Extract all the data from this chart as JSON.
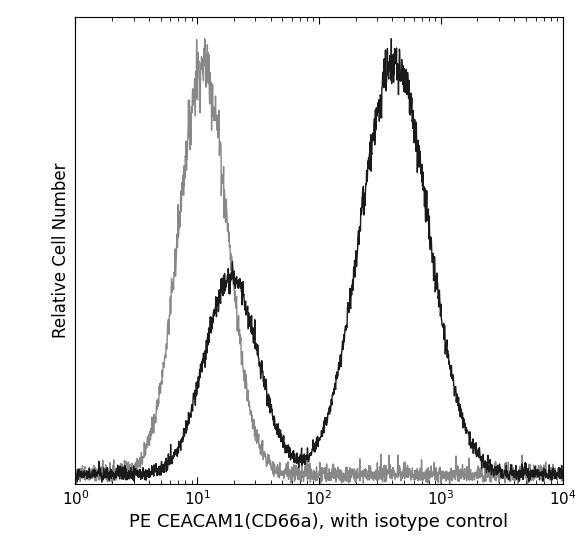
{
  "xlabel": "PE CEACAM1(CD66a), with isotype control",
  "ylabel": "Relative Cell Number",
  "xmin": 1.0,
  "xmax": 10000.0,
  "ymin": 0.0,
  "ymax": 1.05,
  "background_color": "#ffffff",
  "isotype_color": "#888888",
  "antibody_color": "#1a1a1a",
  "xlabel_fontsize": 13,
  "ylabel_fontsize": 12,
  "tick_fontsize": 11,
  "linewidth": 1.0
}
